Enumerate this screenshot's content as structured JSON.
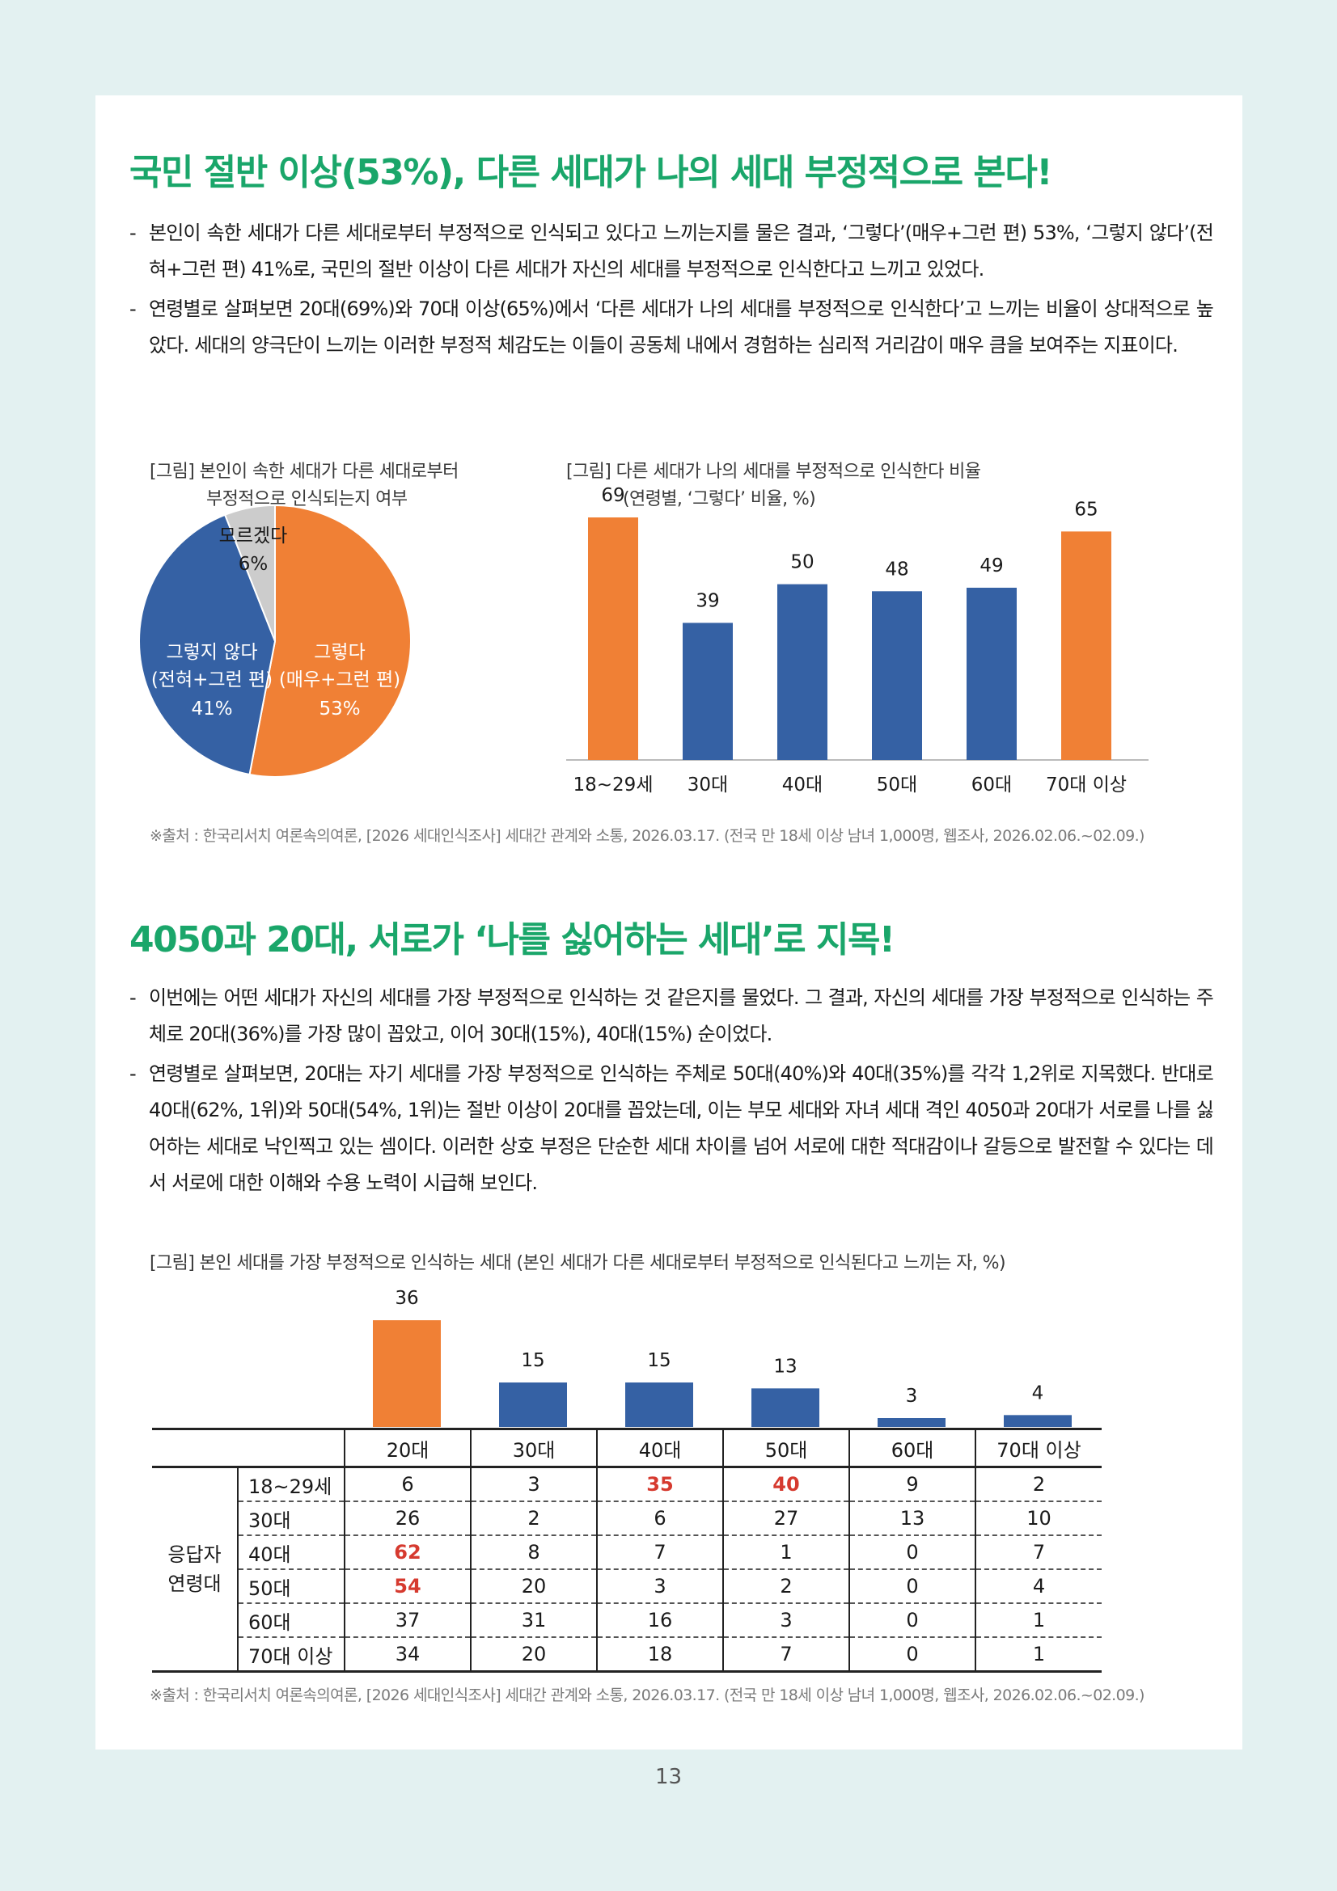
{
  "section1": {
    "title": "국민 절반 이상(53%), 다른 세대가 나의 세대 부정적으로 본다!",
    "bullets": [
      "본인이 속한 세대가 다른 세대로부터 부정적으로 인식되고 있다고 느끼는지를 물은 결과, ‘그렇다’(매우+그런 편) 53%, ‘그렇지 않다’(전혀+그런 편) 41%로, 국민의 절반 이상이 다른 세대가 자신의 세대를 부정적으로 인식한다고 느끼고 있었다.",
      "연령별로 살펴보면 20대(69%)와 70대 이상(65%)에서 ‘다른 세대가 나의 세대를 부정적으로 인식한다’고 느끼는 비율이 상대적으로 높았다. 세대의 양극단이 느끼는 이러한 부정적 체감도는 이들이 공동체 내에서 경험하는 심리적 거리감이 매우 큼을 보여주는 지표이다."
    ],
    "pie_caption_line1": "[그림] 본인이 속한 세대가 다른 세대로부터",
    "pie_caption_line2": "부정적으로 인식되는지 여부",
    "bar_caption_line1": "[그림] 다른 세대가 나의 세대를 부정적으로 인식한다 비율",
    "bar_caption_line2": "(연령별, ‘그렇다’ 비율, %)",
    "source": "※출처 : 한국리서치 여론속의여론, [2026 세대인식조사] 세대간 관계와 소통, 2026.03.17. (전국 만 18세 이상 남녀 1,000명, 웹조사, 2026.02.06.~02.09.)"
  },
  "section2": {
    "title": "4050과 20대, 서로가 ‘나를 싫어하는 세대’로 지목!",
    "bullets": [
      "이번에는 어떤 세대가 자신의 세대를 가장 부정적으로 인식하는 것 같은지를 물었다. 그 결과, 자신의 세대를 가장 부정적으로 인식하는 주체로 20대(36%)를 가장 많이 꼽았고, 이어 30대(15%), 40대(15%) 순이었다.",
      "연령별로 살펴보면, 20대는 자기 세대를 가장 부정적으로 인식하는 주체로 50대(40%)와 40대(35%)를 각각 1,2위로 지목했다. 반대로 40대(62%, 1위)와 50대(54%, 1위)는 절반 이상이 20대를 꼽았는데, 이는 부모 세대와 자녀 세대 격인 4050과 20대가 서로를 나를 싫어하는 세대로 낙인찍고 있는 셈이다. 이러한 상호 부정은 단순한 세대 차이를 넘어 서로에 대한 적대감이나 갈등으로 발전할 수 있다는 데서 서로에 대한 이해와 수용 노력이 시급해 보인다."
    ],
    "chart_caption": "[그림] 본인 세대를 가장 부정적으로 인식하는 세대 (본인 세대가 다른 세대로부터 부정적으로 인식된다고 느끼는 자, %)",
    "table": {
      "group_label": "응답자\n연령대",
      "columns": [
        "20대",
        "30대",
        "40대",
        "50대",
        "60대",
        "70대 이상"
      ],
      "rows": [
        {
          "label": "18~29세",
          "values": [
            "6",
            "3",
            "35",
            "40",
            "9",
            "2"
          ]
        },
        {
          "label": "30대",
          "values": [
            "26",
            "2",
            "6",
            "27",
            "13",
            "10"
          ]
        },
        {
          "label": "40대",
          "values": [
            "62",
            "8",
            "7",
            "1",
            "0",
            "7"
          ]
        },
        {
          "label": "50대",
          "values": [
            "54",
            "20",
            "3",
            "2",
            "0",
            "4"
          ]
        },
        {
          "label": "60대",
          "values": [
            "37",
            "31",
            "16",
            "3",
            "0",
            "1"
          ]
        },
        {
          "label": "70대 이상",
          "values": [
            "34",
            "20",
            "18",
            "7",
            "0",
            "1"
          ]
        }
      ],
      "highlight_color": "#d63a2f"
    },
    "source": "※출처 : 한국리서치 여론속의여론, [2026 세대인식조사] 세대간 관계와 소통, 2026.03.17. (전국 만 18세 이상 남녀 1,000명, 웹조사, 2026.02.06.~02.09.)"
  },
  "page_number": "13",
  "colors": {
    "accent_green": "#1aa66a",
    "orange": "#f08035",
    "blue": "#3561a4",
    "gray": "#cccccc",
    "highlight_red": "#d63a2f"
  },
  "chart_data": [
    {
      "type": "pie",
      "slices": [
        {
          "label": "그렇다",
          "sublabel": "(매우+그런 편)",
          "value": 53,
          "value_label": "53%",
          "color": "#f08035"
        },
        {
          "label": "그렇지 않다",
          "sublabel": "(전혀+그런 편)",
          "value": 41,
          "value_label": "41%",
          "color": "#3561a4"
        },
        {
          "label": "모르겠다",
          "sublabel": "",
          "value": 6,
          "value_label": "6%",
          "color": "#cccccc"
        }
      ]
    },
    {
      "type": "bar",
      "categories": [
        "18~29세",
        "30대",
        "40대",
        "50대",
        "60대",
        "70대 이상"
      ],
      "values": [
        69,
        39,
        50,
        48,
        49,
        65
      ],
      "colors": [
        "#f08035",
        "#3561a4",
        "#3561a4",
        "#3561a4",
        "#3561a4",
        "#f08035"
      ],
      "ylim": [
        0,
        75
      ]
    },
    {
      "type": "bar",
      "categories": [
        "20대",
        "30대",
        "40대",
        "50대",
        "60대",
        "70대 이상"
      ],
      "values": [
        36,
        15,
        15,
        13,
        3,
        4
      ],
      "colors": [
        "#f08035",
        "#3561a4",
        "#3561a4",
        "#3561a4",
        "#3561a4",
        "#3561a4"
      ],
      "ylim": [
        0,
        36
      ]
    }
  ]
}
